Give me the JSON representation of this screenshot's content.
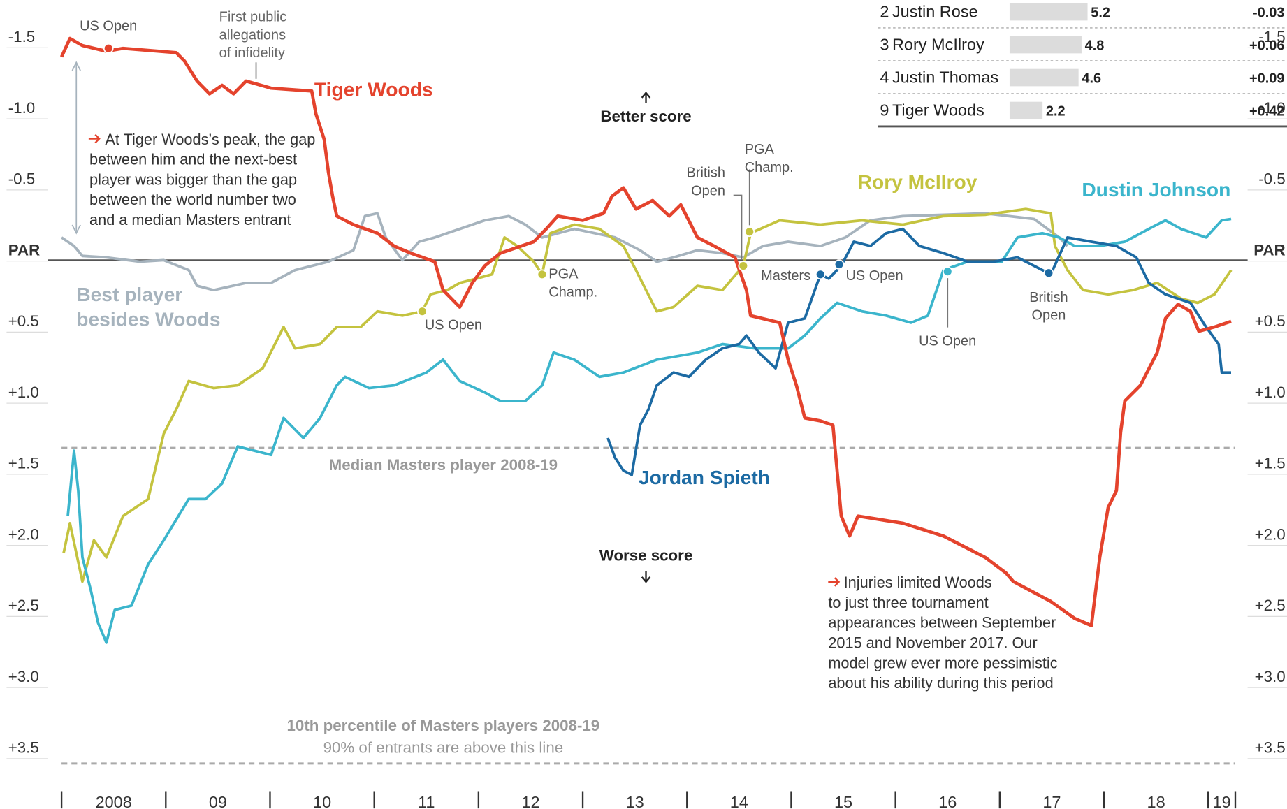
{
  "chart_data": {
    "type": "line",
    "xlim": [
      2008,
      2019.26
    ],
    "ylim": [
      -1.83,
      3.86
    ],
    "y_inverted": true,
    "zero_line": true,
    "xticks": [
      2008,
      2009,
      2010,
      2011,
      2012,
      2013,
      2014,
      2015,
      2016,
      2017,
      2018,
      2019,
      2019.26
    ],
    "xtick_labels": [
      {
        "value": 2008.5,
        "label": "2008"
      },
      {
        "value": 2009.5,
        "label": "09"
      },
      {
        "value": 2010.5,
        "label": "10"
      },
      {
        "value": 2011.5,
        "label": "11"
      },
      {
        "value": 2012.5,
        "label": "12"
      },
      {
        "value": 2013.5,
        "label": "13"
      },
      {
        "value": 2014.5,
        "label": "14"
      },
      {
        "value": 2015.5,
        "label": "15"
      },
      {
        "value": 2016.5,
        "label": "16"
      },
      {
        "value": 2017.5,
        "label": "17"
      },
      {
        "value": 2018.5,
        "label": "18"
      },
      {
        "value": 2019.13,
        "label": "19"
      }
    ],
    "yticks": [
      -1.5,
      {
        "value": -1.0,
        "label": "-1.0"
      },
      -0.5,
      {
        "value": 0,
        "label": "PAR"
      },
      {
        "value": 0.5,
        "label": "+0.5"
      },
      {
        "value": 1.0,
        "label": "+1.0"
      },
      {
        "value": 1.5,
        "label": "+1.5"
      },
      {
        "value": 2.0,
        "label": "+2.0"
      },
      {
        "value": 2.5,
        "label": "+2.5"
      },
      {
        "value": 3.0,
        "label": "+3.0"
      },
      {
        "value": 3.5,
        "label": "+3.5"
      }
    ],
    "series": [
      {
        "name": "Best player besides Woods",
        "color": "#a6b3bd",
        "x": [
          2008.0,
          2008.12,
          2008.2,
          2008.43,
          2008.75,
          2008.98,
          2009.22,
          2009.3,
          2009.46,
          2009.77,
          2010.01,
          2010.24,
          2010.56,
          2010.8,
          2010.91,
          2011.03,
          2011.11,
          2011.27,
          2011.43,
          2011.58,
          2011.82,
          2012.06,
          2012.29,
          2012.45,
          2012.61,
          2012.92,
          2013.31,
          2013.55,
          2013.71,
          2013.87,
          2014.1,
          2014.34,
          2014.54,
          2014.73,
          2014.97,
          2015.28,
          2015.52,
          2015.76,
          2016.07,
          2016.46,
          2016.86,
          2017.33,
          2017.57,
          2017.65
        ],
        "values": [
          -0.16,
          -0.1,
          -0.03,
          -0.02,
          0.01,
          0.0,
          0.07,
          0.18,
          0.21,
          0.16,
          0.16,
          0.07,
          0.01,
          -0.07,
          -0.31,
          -0.33,
          -0.16,
          0.0,
          -0.13,
          -0.16,
          -0.22,
          -0.28,
          -0.31,
          -0.25,
          -0.16,
          -0.22,
          -0.16,
          -0.07,
          0.01,
          -0.02,
          -0.07,
          -0.05,
          -0.02,
          -0.1,
          -0.13,
          -0.1,
          -0.16,
          -0.28,
          -0.31,
          -0.32,
          -0.33,
          -0.29,
          -0.16,
          -0.1
        ]
      },
      {
        "name": "Rory McIlroy",
        "color": "#c4c33f",
        "x": [
          2008.02,
          2008.08,
          2008.2,
          2008.31,
          2008.43,
          2008.59,
          2008.83,
          2008.98,
          2009.1,
          2009.22,
          2009.46,
          2009.69,
          2009.93,
          2010.13,
          2010.24,
          2010.48,
          2010.64,
          2010.87,
          2011.03,
          2011.27,
          2011.46,
          2011.54,
          2011.7,
          2011.82,
          2011.98,
          2012.13,
          2012.25,
          2012.37,
          2012.53,
          2012.61,
          2012.69,
          2012.92,
          2013.16,
          2013.39,
          2013.51,
          2013.71,
          2013.87,
          2014.1,
          2014.34,
          2014.54,
          2014.61,
          2014.89,
          2015.28,
          2015.68,
          2016.07,
          2016.46,
          2016.86,
          2017.25,
          2017.49,
          2017.53,
          2017.65,
          2017.8,
          2018.04,
          2018.28,
          2018.51,
          2018.74,
          2018.9,
          2019.06,
          2019.22
        ],
        "values": [
          2.06,
          1.85,
          2.26,
          1.97,
          2.09,
          1.8,
          1.68,
          1.22,
          1.05,
          0.85,
          0.9,
          0.88,
          0.76,
          0.47,
          0.62,
          0.59,
          0.47,
          0.47,
          0.36,
          0.39,
          0.36,
          0.24,
          0.21,
          0.16,
          0.13,
          0.1,
          -0.16,
          -0.1,
          0.01,
          0.1,
          -0.19,
          -0.25,
          -0.22,
          -0.1,
          0.07,
          0.36,
          0.33,
          0.18,
          0.21,
          0.04,
          -0.19,
          -0.28,
          -0.25,
          -0.28,
          -0.25,
          -0.31,
          -0.32,
          -0.36,
          -0.33,
          -0.1,
          0.07,
          0.21,
          0.24,
          0.21,
          0.16,
          0.27,
          0.3,
          0.24,
          0.07
        ]
      },
      {
        "name": "Dustin Johnson",
        "color": "#3bb5cc",
        "x": [
          2008.06,
          2008.12,
          2008.16,
          2008.2,
          2008.28,
          2008.35,
          2008.43,
          2008.51,
          2008.67,
          2008.83,
          2008.98,
          2009.22,
          2009.38,
          2009.54,
          2009.69,
          2010.01,
          2010.13,
          2010.32,
          2010.48,
          2010.64,
          2010.72,
          2010.95,
          2011.19,
          2011.5,
          2011.66,
          2011.82,
          2012.06,
          2012.21,
          2012.45,
          2012.61,
          2012.72,
          2012.92,
          2013.16,
          2013.39,
          2013.71,
          2014.1,
          2014.34,
          2014.65,
          2014.97,
          2015.13,
          2015.28,
          2015.44,
          2015.68,
          2015.91,
          2016.15,
          2016.31,
          2016.46,
          2016.69,
          2017.02,
          2017.17,
          2017.41,
          2017.57,
          2017.72,
          2017.96,
          2018.2,
          2018.43,
          2018.59,
          2018.74,
          2018.98,
          2019.13,
          2019.22
        ],
        "values": [
          1.8,
          1.34,
          1.62,
          2.09,
          2.32,
          2.55,
          2.69,
          2.46,
          2.43,
          2.14,
          1.97,
          1.68,
          1.68,
          1.57,
          1.31,
          1.37,
          1.11,
          1.25,
          1.11,
          0.88,
          0.82,
          0.9,
          0.88,
          0.79,
          0.7,
          0.85,
          0.93,
          0.99,
          0.99,
          0.88,
          0.65,
          0.7,
          0.82,
          0.79,
          0.7,
          0.65,
          0.59,
          0.62,
          0.62,
          0.53,
          0.41,
          0.3,
          0.36,
          0.39,
          0.44,
          0.39,
          0.07,
          0.01,
          0.01,
          -0.16,
          -0.19,
          -0.16,
          -0.1,
          -0.1,
          -0.13,
          -0.22,
          -0.28,
          -0.22,
          -0.16,
          -0.28,
          -0.29
        ]
      },
      {
        "name": "Jordan Spieth",
        "color": "#1c6aa3",
        "x": [
          2013.24,
          2013.31,
          2013.39,
          2013.47,
          2013.55,
          2013.63,
          2013.71,
          2013.87,
          2014.02,
          2014.18,
          2014.34,
          2014.5,
          2014.57,
          2014.69,
          2014.85,
          2014.97,
          2015.13,
          2015.28,
          2015.36,
          2015.48,
          2015.6,
          2015.76,
          2015.91,
          2016.07,
          2016.23,
          2016.46,
          2016.69,
          2016.94,
          2017.17,
          2017.33,
          2017.49,
          2017.65,
          2017.88,
          2018.12,
          2018.31,
          2018.43,
          2018.59,
          2018.83,
          2018.98,
          2019.1,
          2019.13,
          2019.22
        ],
        "values": [
          1.25,
          1.39,
          1.48,
          1.51,
          1.16,
          1.05,
          0.88,
          0.79,
          0.82,
          0.7,
          0.62,
          0.59,
          0.53,
          0.65,
          0.76,
          0.44,
          0.41,
          0.1,
          0.13,
          0.04,
          -0.13,
          -0.1,
          -0.19,
          -0.22,
          -0.1,
          -0.05,
          0.01,
          0.01,
          -0.02,
          0.04,
          0.1,
          -0.16,
          -0.13,
          -0.1,
          -0.02,
          0.16,
          0.24,
          0.3,
          0.47,
          0.59,
          0.79,
          0.79
        ]
      },
      {
        "name": "Tiger Woods",
        "color": "#e4432d",
        "x": [
          2008.0,
          2008.08,
          2008.2,
          2008.43,
          2008.59,
          2009.1,
          2009.18,
          2009.3,
          2009.42,
          2009.54,
          2009.65,
          2009.77,
          2010.01,
          2010.4,
          2010.44,
          2010.52,
          2010.56,
          2010.6,
          2010.64,
          2010.8,
          2011.03,
          2011.19,
          2011.35,
          2011.58,
          2011.66,
          2011.82,
          2011.94,
          2012.06,
          2012.21,
          2012.41,
          2012.53,
          2012.65,
          2012.76,
          2013.0,
          2013.2,
          2013.28,
          2013.39,
          2013.51,
          2013.67,
          2013.83,
          2013.94,
          2014.1,
          2014.26,
          2014.46,
          2014.57,
          2014.61,
          2014.89,
          2014.97,
          2015.05,
          2015.13,
          2015.28,
          2015.4,
          2015.48,
          2015.56,
          2015.64,
          2016.07,
          2016.46,
          2016.86,
          2017.06,
          2017.13,
          2017.49,
          2017.72,
          2017.88,
          2017.96,
          2018.04,
          2018.12,
          2018.16,
          2018.2,
          2018.35,
          2018.51,
          2018.59,
          2018.71,
          2018.83,
          2018.91,
          2019.06,
          2019.22
        ],
        "values": [
          -1.43,
          -1.56,
          -1.51,
          -1.47,
          -1.49,
          -1.46,
          -1.4,
          -1.26,
          -1.17,
          -1.23,
          -1.17,
          -1.26,
          -1.21,
          -1.19,
          -1.03,
          -0.85,
          -0.62,
          -0.45,
          -0.31,
          -0.25,
          -0.19,
          -0.1,
          -0.05,
          0.01,
          0.21,
          0.33,
          0.16,
          0.04,
          -0.05,
          -0.1,
          -0.13,
          -0.22,
          -0.31,
          -0.28,
          -0.33,
          -0.45,
          -0.51,
          -0.36,
          -0.42,
          -0.31,
          -0.39,
          -0.16,
          -0.1,
          -0.02,
          0.21,
          0.39,
          0.44,
          0.7,
          0.88,
          1.11,
          1.13,
          1.16,
          1.8,
          1.94,
          1.8,
          1.85,
          1.94,
          2.09,
          2.2,
          2.26,
          2.4,
          2.52,
          2.57,
          2.09,
          1.74,
          1.62,
          1.21,
          0.99,
          0.88,
          0.65,
          0.41,
          0.31,
          0.36,
          0.5,
          0.47,
          0.43
        ]
      }
    ],
    "reference_lines": [
      {
        "label": "Median Masters player 2008-19",
        "value": 1.32
      },
      {
        "label": "10th percentile of Masters players 2008-19",
        "sublabel": "90% of entrants are above this line",
        "value": 3.54
      }
    ],
    "events": [
      {
        "label": [
          "US Open"
        ],
        "series": 4,
        "x": 2008.45,
        "value": -1.49
      },
      {
        "label": [
          "US Open"
        ],
        "series": 1,
        "x": 2011.46,
        "value": 0.36
      },
      {
        "label": [
          "PGA",
          "Champ."
        ],
        "series": 1,
        "x": 2012.61,
        "value": 0.1
      },
      {
        "label": [
          "British",
          "Open"
        ],
        "series": 1,
        "x": 2014.54,
        "value": 0.04
      },
      {
        "label": [
          "PGA",
          "Champ."
        ],
        "series": 1,
        "x": 2014.6,
        "value": -0.2
      },
      {
        "label": [
          "Masters"
        ],
        "series": 3,
        "x": 2015.28,
        "value": 0.1
      },
      {
        "label": [
          "US Open"
        ],
        "series": 3,
        "x": 2015.46,
        "value": 0.03
      },
      {
        "label": [
          "US Open"
        ],
        "series": 2,
        "x": 2016.5,
        "value": 0.08
      },
      {
        "label": [
          "British",
          "Open"
        ],
        "series": 3,
        "x": 2017.47,
        "value": 0.09
      }
    ],
    "annotations": {
      "better": "Better score",
      "worse": "Worse score",
      "infidelity": [
        "First public",
        "allegations",
        "of infidelity"
      ],
      "peak_note": [
        "At Tiger Woods’s peak, the gap",
        "between him and the next-best",
        "player was bigger than the gap",
        "between the world number two",
        "and a median Masters entrant"
      ],
      "injury_note": [
        "Injuries limited Woods",
        "to just three tournament",
        "appearances between September",
        "2015 and November 2017. Our",
        "model grew ever more pessimistic",
        "about his ability during this period"
      ]
    }
  },
  "table": {
    "rows": [
      {
        "rank": "2",
        "name": "Justin Rose",
        "value": 5.2,
        "change": "-0.03"
      },
      {
        "rank": "3",
        "name": "Rory McIlroy",
        "value": 4.8,
        "change": "+0.06"
      },
      {
        "rank": "4",
        "name": "Justin Thomas",
        "value": 4.6,
        "change": "+0.09"
      },
      {
        "rank": "9",
        "name": "Tiger Woods",
        "value": 2.2,
        "change": "+0.42"
      }
    ]
  }
}
